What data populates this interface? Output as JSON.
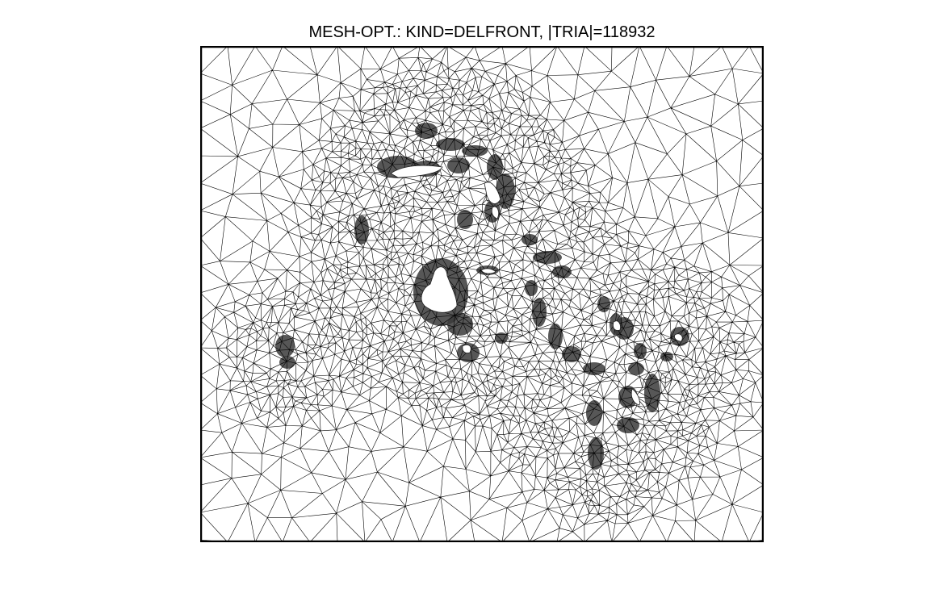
{
  "figure": {
    "title": "MESH-OPT.: KIND=DELFRONT, |TRIA|=118932",
    "colors": {
      "background": "#ffffff",
      "mesh_edge": "#000000",
      "mesh_dense": "#3a3a3a",
      "island_fill": "#ffffff",
      "frame": "#000000"
    }
  }
}
